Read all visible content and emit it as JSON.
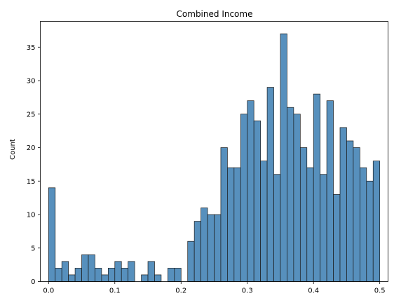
{
  "chart_data": {
    "type": "bar",
    "title": "Combined Income",
    "xlabel": "",
    "ylabel": "Count",
    "bin_start": 0.0,
    "bin_width": 0.01,
    "counts": [
      14,
      2,
      3,
      1,
      2,
      4,
      4,
      2,
      1,
      2,
      3,
      2,
      3,
      0,
      1,
      3,
      1,
      0,
      2,
      2,
      0,
      6,
      9,
      11,
      10,
      10,
      20,
      17,
      17,
      25,
      27,
      24,
      18,
      29,
      16,
      37,
      26,
      25,
      20,
      17,
      28,
      16,
      27,
      13,
      23,
      21,
      20,
      17,
      15,
      18
    ],
    "xlim": [
      -0.0125,
      0.5125
    ],
    "ylim": [
      0,
      38.85
    ],
    "xticks": [
      0.0,
      0.1,
      0.2,
      0.3,
      0.4,
      0.5
    ],
    "xtick_labels": [
      "0.0",
      "0.1",
      "0.2",
      "0.3",
      "0.4",
      "0.5"
    ],
    "yticks": [
      0,
      5,
      10,
      15,
      20,
      25,
      30,
      35
    ],
    "ytick_labels": [
      "0",
      "5",
      "10",
      "15",
      "20",
      "25",
      "30",
      "35"
    ],
    "bar_color": "#5790bd",
    "edge_color": "#1a1a1a",
    "grid": false
  }
}
